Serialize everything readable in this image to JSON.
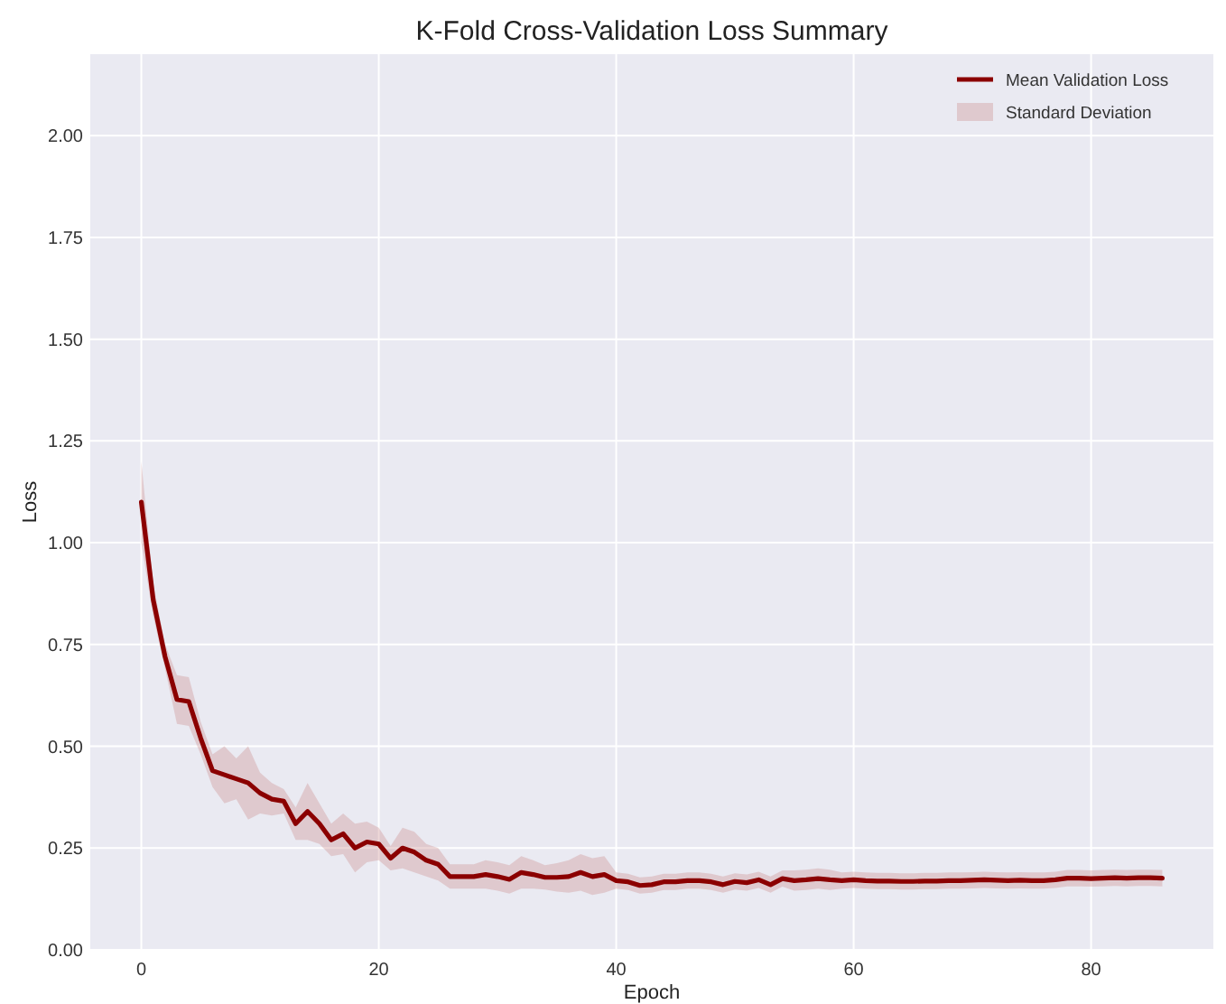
{
  "chart_data": {
    "type": "line",
    "title": "K-Fold Cross-Validation Loss Summary",
    "xlabel": "Epoch",
    "ylabel": "Loss",
    "xlim": [
      -4.3,
      90.3
    ],
    "ylim": [
      0,
      2.2
    ],
    "xticks": [
      0,
      20,
      40,
      60,
      80
    ],
    "yticks": [
      {
        "value": 0,
        "label": "0.00"
      },
      {
        "value": 0.25,
        "label": "0.25"
      },
      {
        "value": 0.5,
        "label": "0.50"
      },
      {
        "value": 0.75,
        "label": "0.75"
      },
      {
        "value": 1,
        "label": "1.00"
      },
      {
        "value": 1.25,
        "label": "1.25"
      },
      {
        "value": 1.5,
        "label": "1.50"
      },
      {
        "value": 1.75,
        "label": "1.75"
      },
      {
        "value": 2,
        "label": "2.00"
      }
    ],
    "grid": true,
    "legend": "top right",
    "annotations": [
      "Standard Deviation"
    ],
    "x": [
      0,
      1,
      2,
      3,
      4,
      5,
      6,
      7,
      8,
      9,
      10,
      11,
      12,
      13,
      14,
      15,
      16,
      17,
      18,
      19,
      20,
      21,
      22,
      23,
      24,
      25,
      26,
      27,
      28,
      29,
      30,
      31,
      32,
      33,
      34,
      35,
      36,
      37,
      38,
      39,
      40,
      41,
      42,
      43,
      44,
      45,
      46,
      47,
      48,
      49,
      50,
      51,
      52,
      53,
      54,
      55,
      56,
      57,
      58,
      59,
      60,
      61,
      62,
      63,
      64,
      65,
      66,
      67,
      68,
      69,
      70,
      71,
      72,
      73,
      74,
      75,
      76,
      77,
      78,
      79,
      80,
      81,
      82,
      83,
      84,
      85,
      86
    ],
    "series": [
      {
        "name": "Mean Validation Loss",
        "type": "line",
        "color": "#8b0000",
        "values": [
          1.1,
          0.86,
          0.72,
          0.615,
          0.61,
          0.52,
          0.44,
          0.43,
          0.42,
          0.41,
          0.385,
          0.37,
          0.365,
          0.31,
          0.34,
          0.31,
          0.27,
          0.285,
          0.25,
          0.265,
          0.26,
          0.225,
          0.25,
          0.24,
          0.22,
          0.21,
          0.18,
          0.18,
          0.18,
          0.185,
          0.18,
          0.173,
          0.19,
          0.185,
          0.178,
          0.178,
          0.18,
          0.19,
          0.18,
          0.185,
          0.17,
          0.167,
          0.158,
          0.16,
          0.167,
          0.167,
          0.17,
          0.17,
          0.167,
          0.16,
          0.168,
          0.165,
          0.172,
          0.16,
          0.175,
          0.17,
          0.172,
          0.175,
          0.172,
          0.17,
          0.172,
          0.17,
          0.169,
          0.169,
          0.168,
          0.168,
          0.169,
          0.169,
          0.17,
          0.17,
          0.171,
          0.172,
          0.171,
          0.17,
          0.171,
          0.17,
          0.17,
          0.172,
          0.176,
          0.176,
          0.175,
          0.176,
          0.177,
          0.176,
          0.177,
          0.177,
          0.176
        ],
        "lower": [
          1.0,
          0.82,
          0.69,
          0.555,
          0.55,
          0.48,
          0.4,
          0.36,
          0.37,
          0.32,
          0.335,
          0.33,
          0.335,
          0.27,
          0.27,
          0.26,
          0.23,
          0.235,
          0.19,
          0.215,
          0.22,
          0.195,
          0.2,
          0.19,
          0.18,
          0.17,
          0.15,
          0.15,
          0.15,
          0.15,
          0.145,
          0.138,
          0.15,
          0.15,
          0.148,
          0.143,
          0.14,
          0.145,
          0.135,
          0.14,
          0.15,
          0.147,
          0.138,
          0.14,
          0.147,
          0.147,
          0.15,
          0.15,
          0.147,
          0.14,
          0.148,
          0.145,
          0.152,
          0.14,
          0.155,
          0.145,
          0.147,
          0.15,
          0.147,
          0.15,
          0.152,
          0.15,
          0.149,
          0.149,
          0.148,
          0.148,
          0.149,
          0.149,
          0.15,
          0.15,
          0.151,
          0.152,
          0.151,
          0.15,
          0.151,
          0.15,
          0.15,
          0.152,
          0.156,
          0.156,
          0.155,
          0.156,
          0.157,
          0.156,
          0.157,
          0.157,
          0.156
        ],
        "upper": [
          1.2,
          0.9,
          0.75,
          0.675,
          0.67,
          0.56,
          0.48,
          0.5,
          0.47,
          0.5,
          0.435,
          0.41,
          0.395,
          0.35,
          0.41,
          0.36,
          0.31,
          0.335,
          0.31,
          0.315,
          0.3,
          0.255,
          0.3,
          0.29,
          0.26,
          0.25,
          0.21,
          0.21,
          0.21,
          0.22,
          0.215,
          0.208,
          0.23,
          0.22,
          0.208,
          0.213,
          0.22,
          0.235,
          0.225,
          0.23,
          0.19,
          0.187,
          0.178,
          0.18,
          0.187,
          0.187,
          0.19,
          0.19,
          0.187,
          0.18,
          0.188,
          0.185,
          0.192,
          0.18,
          0.195,
          0.195,
          0.197,
          0.2,
          0.197,
          0.19,
          0.192,
          0.19,
          0.189,
          0.189,
          0.188,
          0.188,
          0.189,
          0.189,
          0.19,
          0.19,
          0.191,
          0.192,
          0.191,
          0.19,
          0.191,
          0.19,
          0.19,
          0.192,
          0.196,
          0.196,
          0.195,
          0.196,
          0.197,
          0.196,
          0.197,
          0.197,
          0.196
        ]
      }
    ]
  }
}
